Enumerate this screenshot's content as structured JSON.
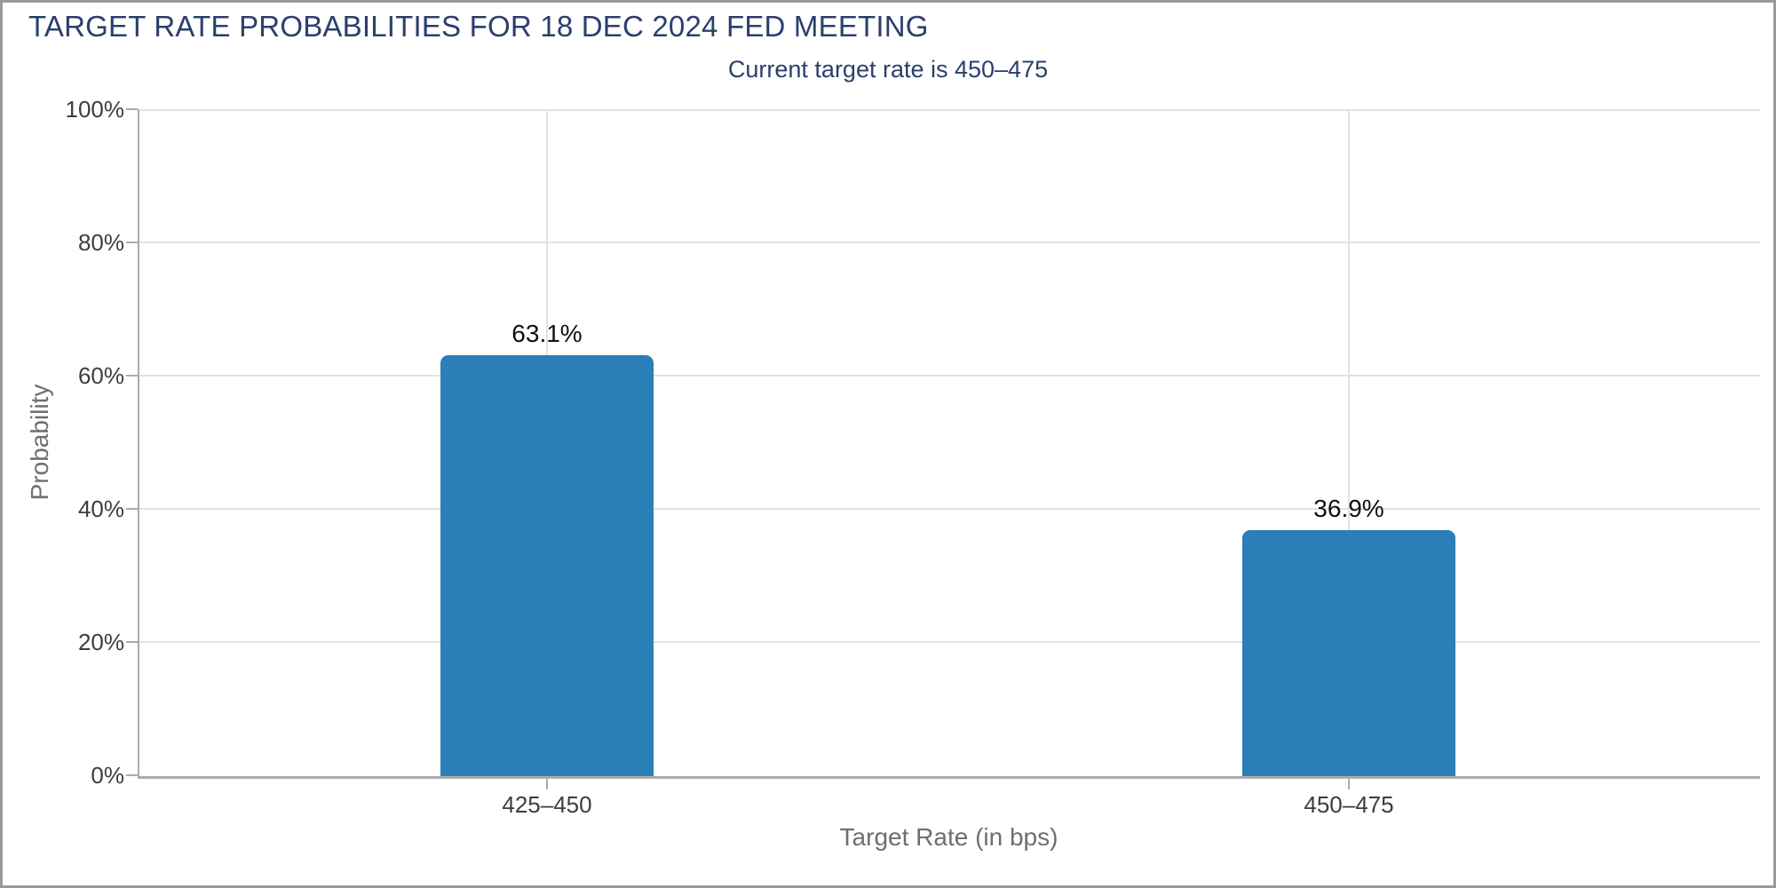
{
  "window": {
    "border_color": "#999999",
    "background_color": "#ffffff"
  },
  "chart_data": {
    "type": "bar",
    "title": "TARGET RATE PROBABILITIES FOR 18 DEC 2024 FED MEETING",
    "subtitle": "Current target rate is 450–475",
    "xlabel": "Target Rate (in bps)",
    "ylabel": "Probability",
    "categories": [
      "425–450",
      "450–475"
    ],
    "values": [
      63.1,
      36.9
    ],
    "value_labels": [
      "63.1%",
      "36.9%"
    ],
    "ylim": [
      0,
      100
    ],
    "ytick_labels": [
      "0%",
      "20%",
      "40%",
      "60%",
      "80%",
      "100%"
    ],
    "grid": "horizontal gridlines every 20% plus one vertical gridline per category band",
    "legend": "none",
    "colors": {
      "bar": "#2a7fb8",
      "title_text": "#2b3f6d",
      "axis_line": "#ababab",
      "gridline": "#e2e2e2",
      "tick_text": "#3d3d3d",
      "axis_title_text": "#6e6e6e",
      "value_label_text": "#111111",
      "window_border": "#999999"
    }
  }
}
